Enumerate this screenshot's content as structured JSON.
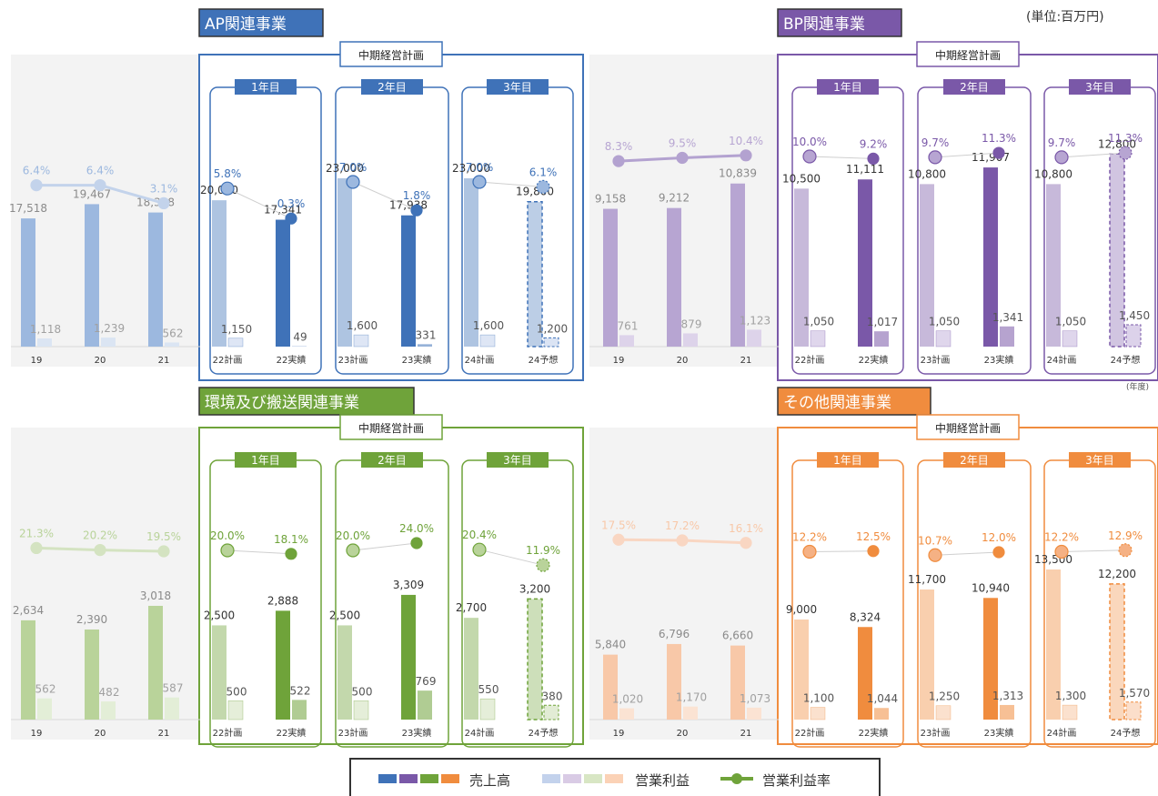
{
  "unit_label": "(単位:百万円)",
  "fy_label": "(年度)",
  "legend": {
    "sales": "売上高",
    "operating_profit": "営業利益",
    "margin": "営業利益率",
    "sales_colors": [
      "#3f72b8",
      "#7a58a8",
      "#6fa33a",
      "#f08c3e"
    ],
    "profit_colors": [
      "#c3d2ec",
      "#d9cbe5",
      "#d8e6c4",
      "#fbd2b6"
    ],
    "margin_color": "#6fa33a"
  },
  "plan_label": "中期経営計画",
  "year_labels": [
    "1年目",
    "2年目",
    "3年目"
  ],
  "chart_data": [
    {
      "type": "bar",
      "title": "AP関連事業",
      "categories": [
        "19",
        "20",
        "21",
        "22計画",
        "22実績",
        "23計画",
        "23実績",
        "24計画",
        "24予想"
      ],
      "series": [
        {
          "name": "売上高",
          "values": [
            17518,
            19467,
            18328,
            20000,
            17341,
            23000,
            17938,
            23000,
            19800
          ],
          "labels": [
            "17,518",
            "19,467",
            "18,328",
            "20,000",
            "17,341",
            "23,000",
            "17,938",
            "23,000",
            "19,800"
          ]
        },
        {
          "name": "営業利益",
          "values": [
            1118,
            1239,
            562,
            1150,
            49,
            1600,
            331,
            1600,
            1200
          ],
          "labels": [
            "1,118",
            "1,239",
            "562",
            "1,150",
            "49",
            "1,600",
            "331",
            "1,600",
            "1,200"
          ]
        },
        {
          "name": "営業利益率",
          "values": [
            6.4,
            6.4,
            3.1,
            5.8,
            0.3,
            7.0,
            1.8,
            7.0,
            6.1
          ],
          "labels": [
            "6.4%",
            "6.4%",
            "3.1%",
            "5.8%",
            "0.3%",
            "7.0%",
            "1.8%",
            "7.0%",
            "6.1%"
          ]
        }
      ],
      "colors": {
        "main": "#3f72b8",
        "light": "#c3d2ec",
        "hist_main": "#9cb8df",
        "hist_light": "#dbe5f3",
        "hist_line": "#c3d3eb",
        "plan_dot": "#9cb8df"
      }
    },
    {
      "type": "bar",
      "title": "BP関連事業",
      "categories": [
        "19",
        "20",
        "21",
        "22計画",
        "22実績",
        "23計画",
        "23実績",
        "24計画",
        "24予想"
      ],
      "series": [
        {
          "name": "売上高",
          "values": [
            9158,
            9212,
            10839,
            10500,
            11111,
            10800,
            11907,
            10800,
            12800
          ],
          "labels": [
            "9,158",
            "9,212",
            "10,839",
            "10,500",
            "11,111",
            "10,800",
            "11,907",
            "10,800",
            "12,800"
          ]
        },
        {
          "name": "営業利益",
          "values": [
            761,
            879,
            1123,
            1050,
            1017,
            1050,
            1341,
            1050,
            1450
          ],
          "labels": [
            "761",
            "879",
            "1,123",
            "1,050",
            "1,017",
            "1,050",
            "1,341",
            "1,050",
            "1,450"
          ]
        },
        {
          "name": "営業利益率",
          "values": [
            8.3,
            9.5,
            10.4,
            10.0,
            9.2,
            9.7,
            11.3,
            9.7,
            11.3
          ],
          "labels": [
            "8.3%",
            "9.5%",
            "10.4%",
            "10.0%",
            "9.2%",
            "9.7%",
            "11.3%",
            "9.7%",
            "11.3%"
          ]
        }
      ],
      "colors": {
        "main": "#7a58a8",
        "light": "#c4b4dc",
        "hist_main": "#b7a5d2",
        "hist_light": "#ddd3ea",
        "hist_line": "#b3a2d0",
        "plan_dot": "#b7a5d2"
      }
    },
    {
      "type": "bar",
      "title": "環境及び搬送関連事業",
      "categories": [
        "19",
        "20",
        "21",
        "22計画",
        "22実績",
        "23計画",
        "23実績",
        "24計画",
        "24予想"
      ],
      "series": [
        {
          "name": "売上高",
          "values": [
            2634,
            2390,
            3018,
            2500,
            2888,
            2500,
            3309,
            2700,
            3200
          ],
          "labels": [
            "2,634",
            "2,390",
            "3,018",
            "2,500",
            "2,888",
            "2,500",
            "3,309",
            "2,700",
            "3,200"
          ]
        },
        {
          "name": "営業利益",
          "values": [
            562,
            482,
            587,
            500,
            522,
            500,
            769,
            550,
            380
          ],
          "labels": [
            "562",
            "482",
            "587",
            "500",
            "522",
            "500",
            "769",
            "550",
            "380"
          ]
        },
        {
          "name": "営業利益率",
          "values": [
            21.3,
            20.2,
            19.5,
            20.0,
            18.1,
            20.0,
            24.0,
            20.4,
            11.9
          ],
          "labels": [
            "21.3%",
            "20.2%",
            "19.5%",
            "20.0%",
            "18.1%",
            "20.0%",
            "24.0%",
            "20.4%",
            "11.9%"
          ]
        }
      ],
      "colors": {
        "main": "#6fa33a",
        "light": "#cfe0b9",
        "hist_main": "#b9d39a",
        "hist_light": "#e3eed7",
        "hist_line": "#d4e3c1",
        "plan_dot": "#b9d39a"
      }
    },
    {
      "type": "bar",
      "title": "その他関連事業",
      "categories": [
        "19",
        "20",
        "21",
        "22計画",
        "22実績",
        "23計画",
        "23実績",
        "24計画",
        "24予想"
      ],
      "series": [
        {
          "name": "売上高",
          "values": [
            5840,
            6796,
            6660,
            9000,
            8324,
            11700,
            10940,
            13500,
            12200
          ],
          "labels": [
            "5,840",
            "6,796",
            "6,660",
            "9,000",
            "8,324",
            "11,700",
            "10,940",
            "13,500",
            "12,200"
          ]
        },
        {
          "name": "営業利益",
          "values": [
            1020,
            1170,
            1073,
            1100,
            1044,
            1250,
            1313,
            1300,
            1570
          ],
          "labels": [
            "1,020",
            "1,170",
            "1,073",
            "1,100",
            "1,044",
            "1,250",
            "1,313",
            "1,300",
            "1,570"
          ]
        },
        {
          "name": "営業利益率",
          "values": [
            17.5,
            17.2,
            16.1,
            12.2,
            12.5,
            10.7,
            12.0,
            12.2,
            12.9
          ],
          "labels": [
            "17.5%",
            "17.2%",
            "16.1%",
            "12.2%",
            "12.5%",
            "10.7%",
            "12.0%",
            "12.2%",
            "12.9%"
          ]
        }
      ],
      "colors": {
        "main": "#f08c3e",
        "light": "#f8c8a6",
        "hist_main": "#f8c8a8",
        "hist_light": "#fbe3d3",
        "hist_line": "#f9d6c2",
        "plan_dot": "#f5b184"
      }
    }
  ]
}
